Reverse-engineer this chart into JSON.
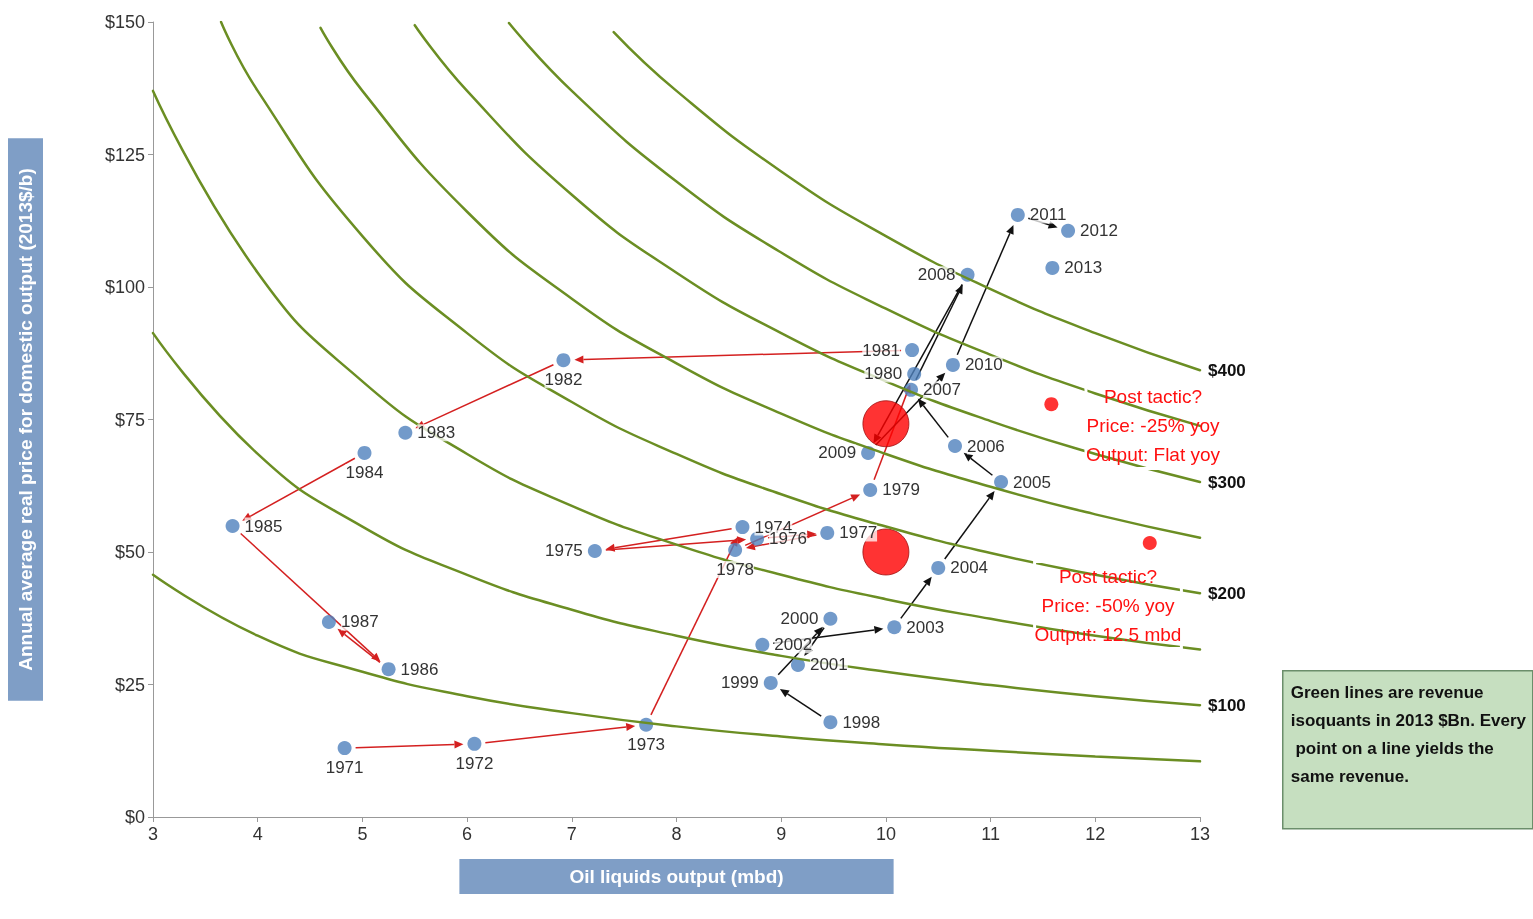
{
  "chart_data": {
    "type": "scatter",
    "xlabel": "Oil liquids output (mbd)",
    "ylabel": "Annual average real price for domestic output (2013$/b)",
    "xlim": [
      3,
      13
    ],
    "xticks": [
      3,
      4,
      5,
      6,
      7,
      8,
      9,
      10,
      11,
      12,
      13
    ],
    "ylim": [
      0,
      150
    ],
    "yticks": [
      {
        "value": 0,
        "label": "$0"
      },
      {
        "value": 25,
        "label": "$25"
      },
      {
        "value": 50,
        "label": "$50"
      },
      {
        "value": 75,
        "label": "$75"
      },
      {
        "value": 100,
        "label": "$100"
      },
      {
        "value": 125,
        "label": "$125"
      },
      {
        "value": 150,
        "label": "$150"
      }
    ],
    "grid": false,
    "marker": "circle",
    "line_style": "solid",
    "series": [
      {
        "type": "line",
        "marker": "none",
        "color": "#6b8e23",
        "x": [
          3,
          4,
          5,
          6,
          7,
          8,
          9,
          10,
          11,
          12,
          13
        ],
        "values": [
          45.7,
          34.2,
          27.4,
          22.8,
          19.6,
          17.1,
          15.2,
          13.7,
          12.5,
          11.4,
          10.5
        ]
      },
      {
        "type": "line",
        "marker": "none",
        "name": "$100",
        "color": "#6b8e23",
        "x": [
          3,
          4,
          5,
          6,
          7,
          8,
          9,
          10,
          11,
          12,
          13
        ],
        "values": [
          91.3,
          68.5,
          54.8,
          45.7,
          39.1,
          34.2,
          30.4,
          27.4,
          24.9,
          22.8,
          21.1
        ]
      },
      {
        "type": "line",
        "marker": "none",
        "color": "#6b8e23",
        "x": [
          3,
          4,
          5,
          6,
          7,
          8,
          9,
          10,
          11,
          12,
          13
        ],
        "values": [
          137.0,
          102.7,
          82.2,
          68.5,
          58.7,
          51.4,
          45.7,
          41.1,
          37.4,
          34.2,
          31.6
        ]
      },
      {
        "type": "line",
        "marker": "none",
        "name": "$200",
        "color": "#6b8e23",
        "x": [
          3.65,
          4,
          5,
          6,
          7,
          8,
          9,
          10,
          11,
          12,
          13
        ],
        "values": [
          150,
          137.0,
          109.6,
          91.3,
          78.3,
          68.5,
          60.9,
          54.8,
          49.8,
          45.7,
          42.2
        ]
      },
      {
        "type": "line",
        "marker": "none",
        "color": "#6b8e23",
        "x": [
          4.6,
          5,
          6,
          7,
          8,
          9,
          10,
          11,
          12,
          13
        ],
        "values": [
          148.9,
          137.0,
          114.2,
          97.8,
          85.6,
          76.1,
          68.5,
          62.3,
          57.1,
          52.7
        ]
      },
      {
        "type": "line",
        "marker": "none",
        "name": "$300",
        "color": "#6b8e23",
        "x": [
          5.5,
          6,
          7,
          8,
          9,
          10,
          11,
          12,
          13
        ],
        "values": [
          149.4,
          137.0,
          117.4,
          102.7,
          91.3,
          82.2,
          74.7,
          68.5,
          63.2
        ]
      },
      {
        "type": "line",
        "marker": "none",
        "color": "#6b8e23",
        "x": [
          6.4,
          7,
          8,
          9,
          10,
          11,
          12,
          13
        ],
        "values": [
          149.8,
          137.0,
          119.9,
          106.5,
          95.9,
          87.2,
          79.9,
          73.8
        ]
      },
      {
        "type": "line",
        "marker": "none",
        "name": "$400",
        "color": "#6b8e23",
        "x": [
          7.4,
          8,
          9,
          10,
          11,
          12,
          13
        ],
        "values": [
          148.1,
          137.0,
          121.8,
          109.6,
          99.6,
          91.3,
          84.3
        ]
      },
      {
        "color": "#4f81bd",
        "x": [
          4.83,
          6.07,
          7.71,
          8.63,
          7.22,
          8.77,
          9.44,
          8.56,
          9.85,
          10.27,
          10.25,
          6.92,
          5.41,
          5.02,
          3.76,
          5.25,
          4.68
        ],
        "values": [
          13.0,
          13.8,
          17.4,
          54.7,
          50.2,
          52.5,
          53.6,
          50.4,
          61.7,
          83.6,
          88.1,
          86.2,
          72.5,
          68.7,
          54.9,
          27.9,
          36.8
        ]
      },
      {
        "color": "#4f81bd",
        "x": [
          9.47,
          8.9,
          9.47,
          9.16,
          8.82,
          10.08,
          10.5,
          11.1,
          10.66,
          10.24,
          10.78,
          9.83,
          10.64,
          11.26,
          11.74,
          11.59
        ],
        "values": [
          17.9,
          25.3,
          37.4,
          28.7,
          32.5,
          35.8,
          47.0,
          63.2,
          70.0,
          80.6,
          102.3,
          68.7,
          85.3,
          113.6,
          110.6,
          103.6
        ]
      },
      {
        "color": "#ff0000",
        "x": [
          11.58,
          12.52
        ],
        "values": [
          77.9,
          51.7
        ]
      },
      {
        "type": "bubble",
        "color": "#ff0000",
        "x": [
          10,
          10
        ],
        "values": [
          74.2,
          50.0
        ],
        "sizes": [
          1,
          1
        ]
      }
    ],
    "annotations": [
      {
        "text": "1971",
        "x": 4.83,
        "y": 13.0
      },
      {
        "text": "1972",
        "x": 6.07,
        "y": 13.8
      },
      {
        "text": "1973",
        "x": 7.71,
        "y": 17.4
      },
      {
        "text": "1974",
        "x": 8.63,
        "y": 54.7
      },
      {
        "text": "1975",
        "x": 7.22,
        "y": 50.2
      },
      {
        "text": "1976",
        "x": 8.77,
        "y": 52.5
      },
      {
        "text": "1977",
        "x": 9.44,
        "y": 53.6
      },
      {
        "text": "1978",
        "x": 8.56,
        "y": 50.4
      },
      {
        "text": "1979",
        "x": 9.85,
        "y": 61.7
      },
      {
        "text": "1980",
        "x": 10.27,
        "y": 83.6
      },
      {
        "text": "1981",
        "x": 10.25,
        "y": 88.1
      },
      {
        "text": "1982",
        "x": 6.92,
        "y": 86.2
      },
      {
        "text": "1983",
        "x": 5.41,
        "y": 72.5
      },
      {
        "text": "1984",
        "x": 5.02,
        "y": 68.7
      },
      {
        "text": "1985",
        "x": 3.76,
        "y": 54.9
      },
      {
        "text": "1986",
        "x": 5.25,
        "y": 27.9
      },
      {
        "text": "1987",
        "x": 4.68,
        "y": 36.8
      },
      {
        "text": "1998",
        "x": 9.47,
        "y": 17.9
      },
      {
        "text": "1999",
        "x": 8.9,
        "y": 25.3
      },
      {
        "text": "2000",
        "x": 9.47,
        "y": 37.4
      },
      {
        "text": "2001",
        "x": 9.16,
        "y": 28.7
      },
      {
        "text": "2002",
        "x": 8.82,
        "y": 32.5
      },
      {
        "text": "2003",
        "x": 10.08,
        "y": 35.8
      },
      {
        "text": "2004",
        "x": 10.5,
        "y": 47.0
      },
      {
        "text": "2005",
        "x": 11.1,
        "y": 63.2
      },
      {
        "text": "2006",
        "x": 10.66,
        "y": 70.0
      },
      {
        "text": "2007",
        "x": 10.24,
        "y": 80.6
      },
      {
        "text": "2008",
        "x": 10.78,
        "y": 102.3
      },
      {
        "text": "2009",
        "x": 9.83,
        "y": 68.7
      },
      {
        "text": "2010",
        "x": 10.64,
        "y": 85.3
      },
      {
        "text": "2011",
        "x": 11.26,
        "y": 113.6
      },
      {
        "text": "2012",
        "x": 11.74,
        "y": 110.6
      },
      {
        "text": "2013",
        "x": 11.59,
        "y": 103.6
      },
      "Post tactic?\nPrice: -25% yoy\nOutput: Flat yoy",
      "Post tactic?\nPrice: -50% yoy\nOutput: 12.5 mbd",
      "Green lines are revenue isoquants in 2013 $Bn. Every point on a line yields the same revenue."
    ]
  }
}
